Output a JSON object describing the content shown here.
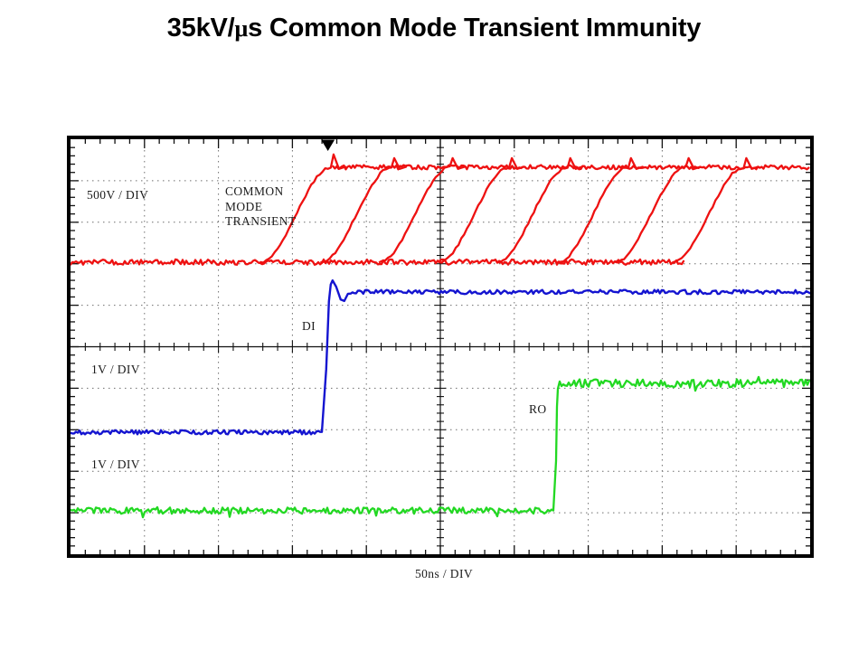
{
  "title": {
    "pre": "35kV/",
    "mu": "μ",
    "post": "s Common Mode Transient Immunity"
  },
  "scope": {
    "labels": {
      "red_scale": "500V / DIV",
      "cmt_lines": [
        "COMMON",
        "MODE",
        "TRANSIENT"
      ],
      "di": "DI",
      "di_scale": "1V / DIV",
      "ro_scale": "1V / DIV",
      "ro": "RO",
      "time_scale": "50ns / DIV"
    },
    "frame_color": "#000000",
    "grid_color": "#6e6e6e"
  },
  "chart_data": {
    "type": "line",
    "title": "35kV/μs Common Mode Transient Immunity",
    "xlabel": "50ns / DIV",
    "grid": {
      "x_divs": 10,
      "y_divs": 10,
      "minor_per_div_x": 5,
      "minor_per_div_y": 5
    },
    "trigger_marker_x_div": 3.48,
    "series": [
      {
        "id": "cmt",
        "name": "COMMON MODE TRANSIENT",
        "color": "#ee1111",
        "vertical_scale": "500V / DIV",
        "baseline_y_div": 2.96,
        "high_y_div": 0.675,
        "ramp_starts_x_div": [
          2.57,
          3.39,
          4.18,
          4.98,
          5.77,
          6.59,
          7.37,
          8.15
        ],
        "ramp_width_div": 0.95,
        "baseline_end_x_div": 8.3,
        "plateau_start_x_div": 3.55,
        "overshoot_div": 0.22,
        "first_overshoot_div": 0.31,
        "noise_div": 0.065
      },
      {
        "id": "di",
        "name": "DI",
        "color": "#1414d0",
        "vertical_scale": "1V / DIV",
        "low_y_div": 7.06,
        "high_y_div": 3.68,
        "edge_x_div": 3.42,
        "overshoot_div": 0.28,
        "noise_div": 0.05
      },
      {
        "id": "ro",
        "name": "RO",
        "color": "#22d822",
        "vertical_scale": "1V / DIV",
        "low_y_div": 8.95,
        "high_y_div": 5.88,
        "edge_x_div": 6.54,
        "noise_div": 0.095
      }
    ]
  }
}
